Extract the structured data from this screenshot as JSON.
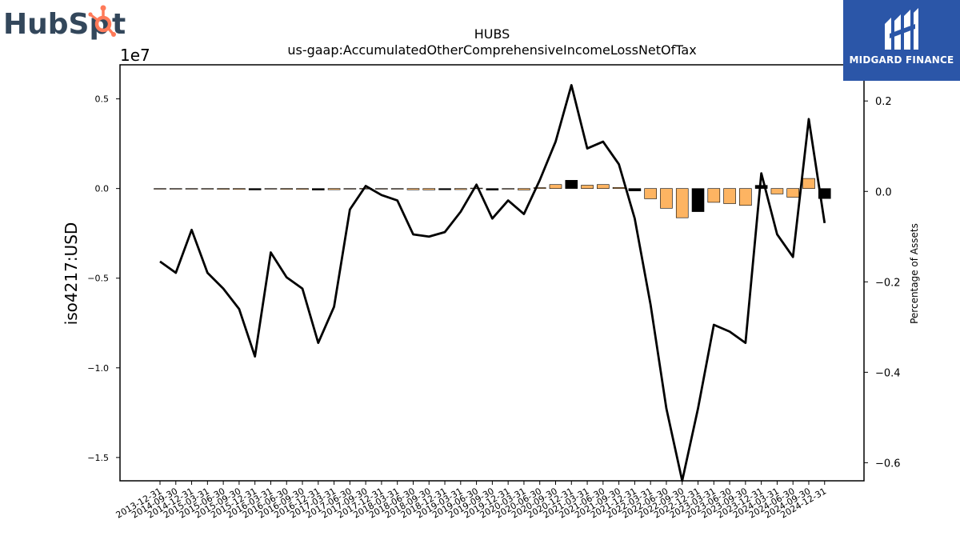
{
  "logos": {
    "left_text_a": "HubSp",
    "left_text_b": "t",
    "right_text": "MIDGARD FINANCE"
  },
  "colors": {
    "positive_bar": "#fdb462",
    "negative_bar": "#000000",
    "line": "#000000",
    "hubspot_orange": "#ff7a59",
    "hubspot_dark": "#33475b",
    "midgard_blue": "#2b56a8"
  },
  "chart_data": {
    "type": "bar",
    "title": "HUBS",
    "subtitle": "us-gaap:AccumulatedOtherComprehensiveIncomeLossNetOfTax",
    "ylabel": "iso4217:USD",
    "y2label": "Percentage of Assets",
    "yscale_label": "1e7",
    "ylim": [
      -16.3,
      6.9
    ],
    "y2lim": [
      -0.64,
      0.28
    ],
    "yticks": [
      0.5,
      0.0,
      -0.5,
      -1.0,
      -1.5
    ],
    "ytick_labels": [
      "0.5",
      "0.0",
      "−0.5",
      "−1.0",
      "−1.5"
    ],
    "y2ticks": [
      0.2,
      0.0,
      -0.2,
      -0.4,
      -0.6
    ],
    "y2tick_labels": [
      "0.2",
      "0.0",
      "−0.2",
      "−0.4",
      "−0.6"
    ],
    "bar_value_unit": "millions USD",
    "categories": [
      "2013-12-31",
      "2014-09-30",
      "2014-12-31",
      "2015-03-31",
      "2015-06-30",
      "2015-09-30",
      "2015-12-31",
      "2016-03-31",
      "2016-06-30",
      "2016-09-30",
      "2016-12-31",
      "2017-03-31",
      "2017-06-30",
      "2017-09-30",
      "2017-12-31",
      "2018-03-31",
      "2018-06-30",
      "2018-09-30",
      "2018-12-31",
      "2019-03-31",
      "2019-06-30",
      "2019-09-30",
      "2019-12-31",
      "2020-03-31",
      "2020-06-30",
      "2020-09-30",
      "2020-12-31",
      "2021-03-31",
      "2021-06-30",
      "2021-09-30",
      "2021-12-31",
      "2022-03-31",
      "2022-06-30",
      "2022-09-30",
      "2022-12-31",
      "2023-03-31",
      "2023-06-30",
      "2023-09-30",
      "2023-12-31",
      "2024-03-31",
      "2024-06-30",
      "2024-09-30",
      "2024-12-31"
    ],
    "series": [
      {
        "values": [
          -0.05,
          -0.1,
          -0.15,
          -0.35,
          -0.45,
          -0.5,
          -0.8,
          -0.3,
          -0.45,
          -0.5,
          -0.85,
          -0.65,
          -0.2,
          0.1,
          -0.05,
          -0.15,
          -0.7,
          -0.75,
          -0.7,
          -0.6,
          0.25,
          -0.9,
          -0.35,
          -0.8,
          0.5,
          2.2,
          4.6,
          1.85,
          2.2,
          0.6,
          -1.35,
          -5.7,
          -11.0,
          -16.3,
          -12.9,
          -7.7,
          -8.4,
          -9.4,
          1.8,
          -3.0,
          -4.85,
          5.6,
          -5.6
        ]
      },
      {
        "values": [
          -0.155,
          -0.18,
          -0.085,
          -0.18,
          -0.215,
          -0.26,
          -0.365,
          -0.135,
          -0.19,
          -0.215,
          -0.335,
          -0.255,
          -0.04,
          0.012,
          -0.008,
          -0.02,
          -0.095,
          -0.1,
          -0.09,
          -0.045,
          0.015,
          -0.06,
          -0.02,
          -0.05,
          0.025,
          0.11,
          0.235,
          0.095,
          0.11,
          0.06,
          -0.06,
          -0.25,
          -0.48,
          -0.7,
          -0.48,
          -0.295,
          -0.31,
          -0.335,
          0.04,
          -0.095,
          -0.145,
          0.16,
          -0.07
        ]
      }
    ]
  }
}
